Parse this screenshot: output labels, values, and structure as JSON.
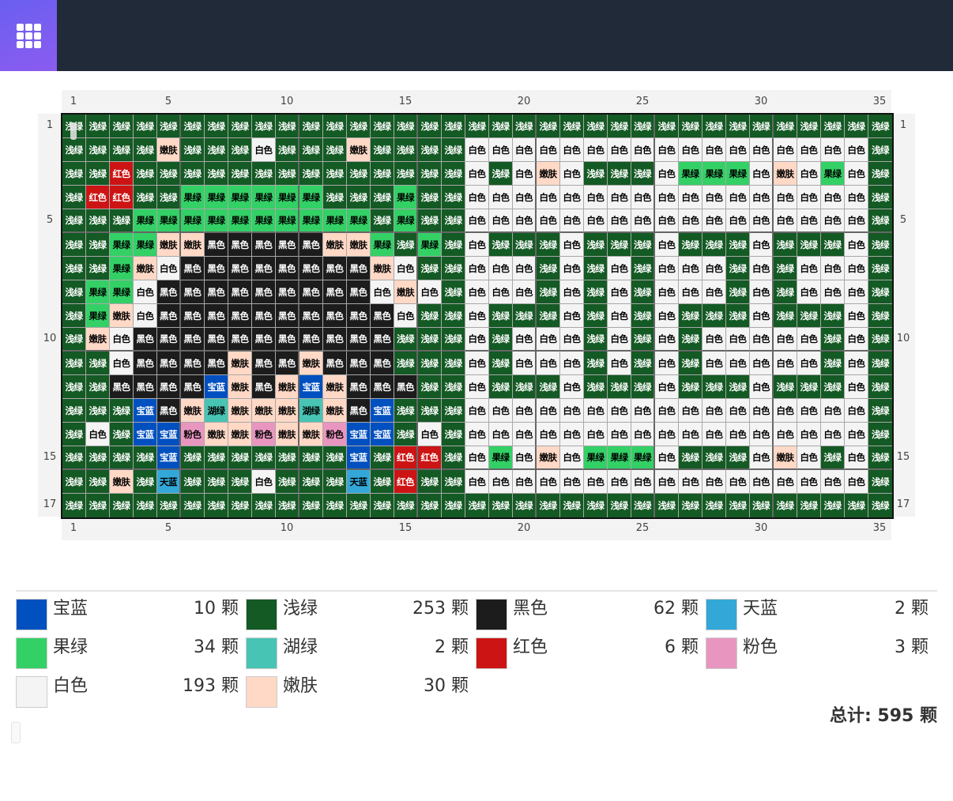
{
  "header": {
    "menu_icon": "grid-3x3-icon"
  },
  "rulers": {
    "columns": [
      "1",
      "5",
      "10",
      "15",
      "20",
      "25",
      "30",
      "35"
    ],
    "column_positions": [
      1,
      5,
      10,
      15,
      20,
      25,
      30,
      35
    ],
    "rows": [
      "1",
      "5",
      "10",
      "15",
      "17"
    ],
    "row_positions": [
      1,
      5,
      10,
      15,
      17
    ]
  },
  "palette": {
    "B": {
      "name": "宝蓝",
      "hex": "#0050c0",
      "text": "#ffffff"
    },
    "G": {
      "name": "浅绿",
      "hex": "#145a24",
      "text": "#ffffff"
    },
    "K": {
      "name": "黑色",
      "hex": "#1c1c1c",
      "text": "#ffffff"
    },
    "S": {
      "name": "天蓝",
      "hex": "#33a8d8",
      "text": "#000000"
    },
    "L": {
      "name": "果绿",
      "hex": "#33d066",
      "text": "#000000"
    },
    "H": {
      "name": "湖绿",
      "hex": "#48c4b4",
      "text": "#000000"
    },
    "R": {
      "name": "红色",
      "hex": "#cc1414",
      "text": "#ffffff"
    },
    "P": {
      "name": "粉色",
      "hex": "#e896c0",
      "text": "#000000"
    },
    "W": {
      "name": "白色",
      "hex": "#f4f4f4",
      "text": "#000000"
    },
    "N": {
      "name": "嫩肤",
      "hex": "#ffd8c6",
      "text": "#000000"
    }
  },
  "grid_rows": [
    "GGGGGGGGGGGGGGGGGGGGGGGGGGGGGGGGGGG",
    "GGGGNGGGWGGGNGGGGWWWWWWWWWWWWWWWWWG",
    "GGRGGGGGGGGGGGGGGWGWNWGGGWLLLWNWLWG",
    "GRRGGLLLLLLGGGLGGWWWWWWWWWWWWWWWWWG",
    "GGGLLLLLLLLLLGLGGWWWWWWWWWWWWWWWWWG",
    "GGLLNNKKKKKNNLGLGWGGGWGGGWGGGWGGGWG",
    "GGLNWKKKKKKKKNWGGWWWGWGWGWWWGWGWWWG",
    "GLLWKKKKKKKKKWNWGWWWGWGWGWWWGWGWWWG",
    "GLNWKKKKKKKKKKWGGWGGGWGWGWGGGWGGGWG",
    "GNWKKKKKKKKKKKGGGWGWWWGWGWGWWWWWGWG",
    "GGWKKKKNKKNKKKGGGWGWWWGWGWGWWWWWGWG",
    "GGKKKKBNKNBNKKKGGWGGGWGGGWGGGWGGGWG",
    "GGGBKNHNNNHNKBGGGWWWWWWWWWWWWWWWWWG",
    "GWGBBPNNPNNPBBGWGWWWWWWWWWWWWWWWWWG",
    "GGGGBGGGGGGGBGRRGWLWNWLLLWGGGWNWGWG",
    "GGNGSGGGWGGGSGRGGWWWWWWWWWWWWWWWWWG",
    "GGGGGGGGGGGGGGGGGGGGGGGGGGGGGGGGGGG"
  ],
  "legend": [
    {
      "code": "B",
      "name": "宝蓝",
      "count": "10 颗",
      "hex": "#0050c0"
    },
    {
      "code": "G",
      "name": "浅绿",
      "count": "253 颗",
      "hex": "#145a24"
    },
    {
      "code": "K",
      "name": "黑色",
      "count": "62 颗",
      "hex": "#1c1c1c"
    },
    {
      "code": "S",
      "name": "天蓝",
      "count": "2 颗",
      "hex": "#33a8d8"
    },
    {
      "code": "L",
      "name": "果绿",
      "count": "34 颗",
      "hex": "#33d066"
    },
    {
      "code": "H",
      "name": "湖绿",
      "count": "2 颗",
      "hex": "#48c4b4"
    },
    {
      "code": "R",
      "name": "红色",
      "count": "6 颗",
      "hex": "#cc1414"
    },
    {
      "code": "P",
      "name": "粉色",
      "count": "3 颗",
      "hex": "#e896c0"
    },
    {
      "code": "W",
      "name": "白色",
      "count": "193 颗",
      "hex": "#f4f4f4"
    },
    {
      "code": "N",
      "name": "嫩肤",
      "count": "30 颗",
      "hex": "#ffd8c6"
    }
  ],
  "total": "总计: 595 颗"
}
